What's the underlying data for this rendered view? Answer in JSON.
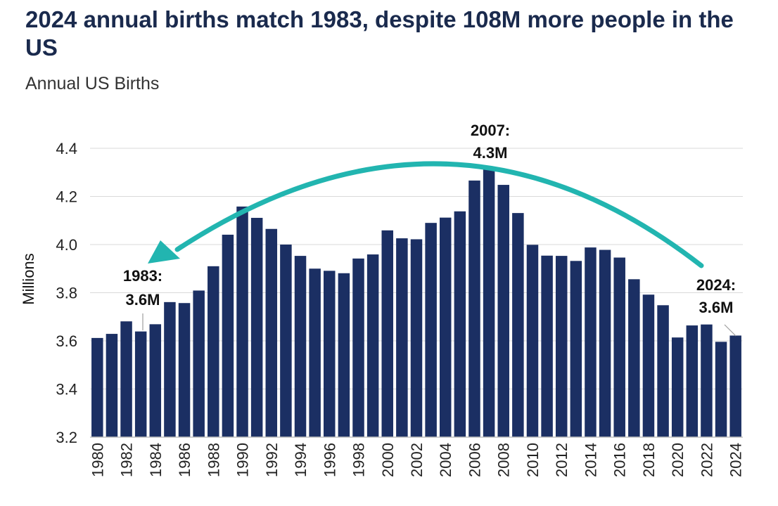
{
  "title": "2024 annual births match 1983, despite 108M more people in the US",
  "subtitle": "Annual US Births",
  "chart_data": {
    "type": "bar",
    "title": "2024 annual births match 1983, despite 108M more people in the US",
    "subtitle": "Annual US Births",
    "xlabel": "",
    "ylabel": "Millions",
    "ylim": [
      3.2,
      4.4
    ],
    "yticks": [
      "3.2",
      "3.4",
      "3.6",
      "3.8",
      "4.0",
      "4.2",
      "4.4"
    ],
    "grid": true,
    "categories": [
      1980,
      1981,
      1982,
      1983,
      1984,
      1985,
      1986,
      1987,
      1988,
      1989,
      1990,
      1991,
      1992,
      1993,
      1994,
      1995,
      1996,
      1997,
      1998,
      1999,
      2000,
      2001,
      2002,
      2003,
      2004,
      2005,
      2006,
      2007,
      2008,
      2009,
      2010,
      2011,
      2012,
      2013,
      2014,
      2015,
      2016,
      2017,
      2018,
      2019,
      2020,
      2021,
      2022,
      2023,
      2024
    ],
    "xtick_labels": [
      "1980",
      "1982",
      "1984",
      "1986",
      "1988",
      "1990",
      "1992",
      "1994",
      "1996",
      "1998",
      "2000",
      "2002",
      "2004",
      "2006",
      "2008",
      "2010",
      "2012",
      "2014",
      "2016",
      "2018",
      "2020",
      "2022",
      "2024"
    ],
    "values": [
      3.612,
      3.629,
      3.681,
      3.639,
      3.669,
      3.761,
      3.757,
      3.809,
      3.91,
      4.041,
      4.158,
      4.111,
      4.065,
      4.0,
      3.953,
      3.9,
      3.891,
      3.881,
      3.942,
      3.959,
      4.059,
      4.026,
      4.022,
      4.09,
      4.112,
      4.138,
      4.266,
      4.316,
      4.248,
      4.131,
      3.999,
      3.954,
      3.953,
      3.932,
      3.988,
      3.978,
      3.946,
      3.856,
      3.792,
      3.748,
      3.614,
      3.664,
      3.668,
      3.596,
      3.622
    ],
    "bar_color": "#1b2f63",
    "arrow_color": "#22b5b0",
    "annotations": [
      {
        "year": 1983,
        "lines": [
          "1983:",
          "3.6M"
        ]
      },
      {
        "year": 2007,
        "lines": [
          "2007:",
          "4.3M"
        ]
      },
      {
        "year": 2024,
        "lines": [
          "2024:",
          "3.6M"
        ]
      }
    ]
  }
}
